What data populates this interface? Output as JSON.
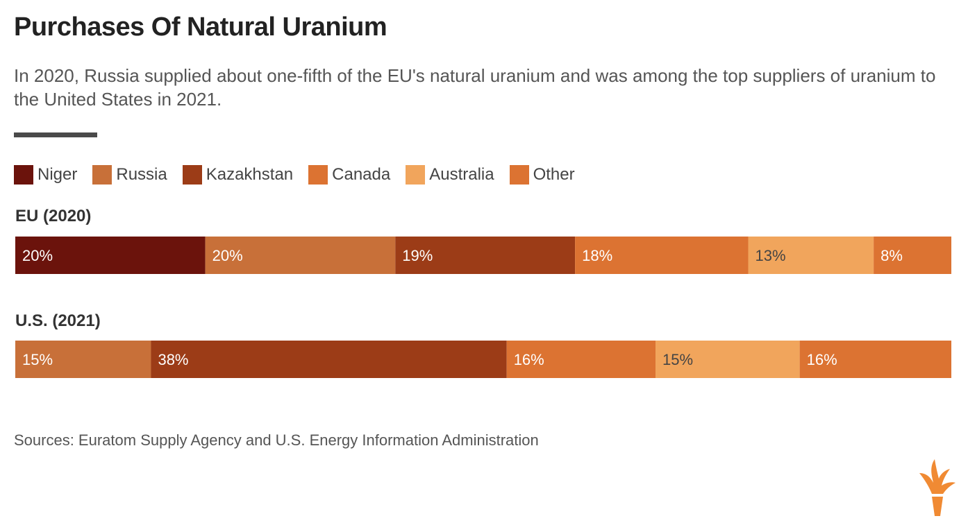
{
  "title": "Purchases Of Natural Uranium",
  "subtitle": "In 2020, Russia supplied about one-fifth of the EU's natural uranium and was among the top suppliers of uranium to the United States in 2021.",
  "source": "Sources: Euratom Supply Agency and U.S. Energy Information Administration",
  "logo_icon": "torch-logo-icon",
  "colors": {
    "Niger": "#6b130c",
    "Russia": "#c87039",
    "Kazakhstan": "#9c3c17",
    "Canada": "#dc7332",
    "Australia": "#f1a55c",
    "Other": "#dc7332",
    "logo": "#f08a33"
  },
  "chart_data": {
    "type": "bar",
    "orientation": "horizontal",
    "stacked": true,
    "percent_stacked": true,
    "legend": [
      "Niger",
      "Russia",
      "Kazakhstan",
      "Canada",
      "Australia",
      "Other"
    ],
    "legend_position": "top-left",
    "grid": false,
    "xlim": [
      0,
      100
    ],
    "rows": [
      {
        "label": "EU (2020)",
        "segments": [
          {
            "series": "Niger",
            "value": 20.3,
            "label": "20%"
          },
          {
            "series": "Russia",
            "value": 20.3,
            "label": "20%"
          },
          {
            "series": "Kazakhstan",
            "value": 19.2,
            "label": "19%"
          },
          {
            "series": "Canada",
            "value": 18.5,
            "label": "18%"
          },
          {
            "series": "Australia",
            "value": 13.4,
            "label": "13%"
          },
          {
            "series": "Other",
            "value": 8.3,
            "label": "8%"
          }
        ]
      },
      {
        "label": "U.S. (2021)",
        "segments": [
          {
            "series": "Russia",
            "value": 14.5,
            "label": "15%"
          },
          {
            "series": "Kazakhstan",
            "value": 38.0,
            "label": "38%"
          },
          {
            "series": "Canada",
            "value": 15.9,
            "label": "16%"
          },
          {
            "series": "Australia",
            "value": 15.4,
            "label": "15%"
          },
          {
            "series": "Other",
            "value": 16.2,
            "label": "16%"
          }
        ]
      }
    ]
  }
}
